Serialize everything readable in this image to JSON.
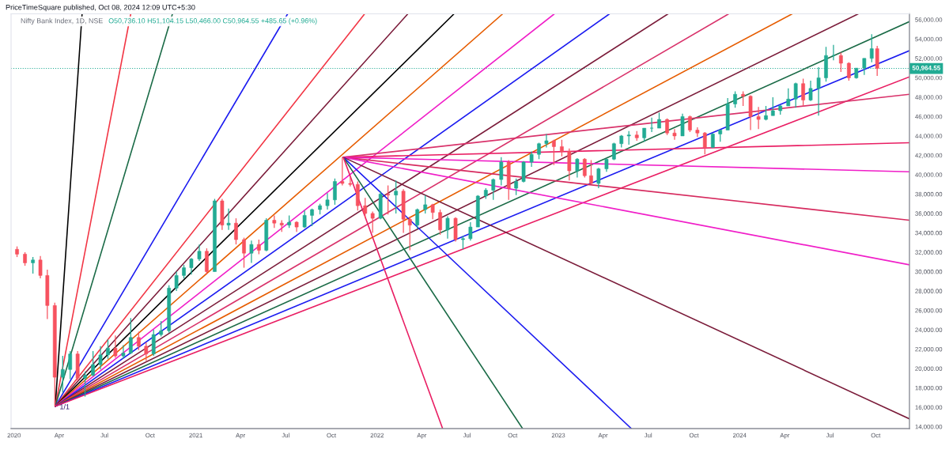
{
  "chart_data": {
    "type": "candlestick",
    "annotations": [
      "PriceTimeSquare published, Oct 08, 2024 12:09 UTC+5:30",
      "Nifty Bank Index, 1D, NSE",
      "O50,736.10 H51,104.15 L50,466.00 C50,964.55 +485.65 (+0.96%)",
      {
        "text": "1/1",
        "x": "2020-03-24",
        "y": 16100
      }
    ],
    "xlim": [
      "2019-12-26",
      "2024-12-08"
    ],
    "xticks": [
      {
        "value": "2020-01-01",
        "label": "2020"
      },
      {
        "value": "2020-04-01",
        "label": "Apr"
      },
      {
        "value": "2020-07-01",
        "label": "Jul"
      },
      {
        "value": "2020-10-01",
        "label": "Oct"
      },
      {
        "value": "2021-01-01",
        "label": "2021"
      },
      {
        "value": "2021-04-01",
        "label": "Apr"
      },
      {
        "value": "2021-07-01",
        "label": "Jul"
      },
      {
        "value": "2021-10-01",
        "label": "Oct"
      },
      {
        "value": "2022-01-01",
        "label": "2022"
      },
      {
        "value": "2022-04-01",
        "label": "Apr"
      },
      {
        "value": "2022-07-01",
        "label": "Jul"
      },
      {
        "value": "2022-10-01",
        "label": "Oct"
      },
      {
        "value": "2023-01-01",
        "label": "2023"
      },
      {
        "value": "2023-04-01",
        "label": "Apr"
      },
      {
        "value": "2023-07-01",
        "label": "Jul"
      },
      {
        "value": "2023-10-01",
        "label": "Oct"
      },
      {
        "value": "2024-01-01",
        "label": "2024"
      },
      {
        "value": "2024-04-01",
        "label": "Apr"
      },
      {
        "value": "2024-07-01",
        "label": "Jul"
      },
      {
        "value": "2024-10-01",
        "label": "Oct"
      }
    ],
    "ylim": [
      13800,
      56600
    ],
    "yticks": [
      {
        "value": 14000,
        "label": "14,000.00"
      },
      {
        "value": 16000,
        "label": "16,000.00"
      },
      {
        "value": 18000,
        "label": "18,000.00"
      },
      {
        "value": 20000,
        "label": "20,000.00"
      },
      {
        "value": 22000,
        "label": "22,000.00"
      },
      {
        "value": 24000,
        "label": "24,000.00"
      },
      {
        "value": 26000,
        "label": "26,000.00"
      },
      {
        "value": 28000,
        "label": "28,000.00"
      },
      {
        "value": 30000,
        "label": "30,000.00"
      },
      {
        "value": 32000,
        "label": "32,000.00"
      },
      {
        "value": 34000,
        "label": "34,000.00"
      },
      {
        "value": 36000,
        "label": "36,000.00"
      },
      {
        "value": 38000,
        "label": "38,000.00"
      },
      {
        "value": 40000,
        "label": "40,000.00"
      },
      {
        "value": 42000,
        "label": "42,000.00"
      },
      {
        "value": 44000,
        "label": "44,000.00"
      },
      {
        "value": 46000,
        "label": "46,000.00"
      },
      {
        "value": 48000,
        "label": "48,000.00"
      },
      {
        "value": 50000,
        "label": "50,000.00"
      },
      {
        "value": 52000,
        "label": "52,000.00"
      },
      {
        "value": 54000,
        "label": "54,000.00"
      },
      {
        "value": 56000,
        "label": "56,000.00"
      }
    ],
    "grid": false,
    "ref_lines": [
      {
        "axis": "y",
        "value": 50964.55,
        "label": "50,964.55",
        "color": "#22ab94",
        "line_style": "dotted"
      }
    ],
    "series": [
      {
        "x": [
          "2020-01-07",
          "2020-01-23",
          "2020-02-08",
          "2020-02-23",
          "2020-03-08",
          "2020-03-23",
          "2020-04-08",
          "2020-04-23",
          "2020-05-08",
          "2020-05-23",
          "2020-06-08",
          "2020-06-23",
          "2020-07-08",
          "2020-07-23",
          "2020-08-08",
          "2020-08-23",
          "2020-09-08",
          "2020-09-23",
          "2020-10-08",
          "2020-10-23",
          "2020-11-08",
          "2020-11-23",
          "2020-12-08",
          "2020-12-23",
          "2021-01-08",
          "2021-01-23",
          "2021-02-08",
          "2021-02-23",
          "2021-03-08",
          "2021-03-23",
          "2021-04-08",
          "2021-04-23",
          "2021-05-08",
          "2021-05-23",
          "2021-06-08",
          "2021-06-23",
          "2021-07-08",
          "2021-07-23",
          "2021-08-08",
          "2021-08-23",
          "2021-09-08",
          "2021-09-23",
          "2021-10-08",
          "2021-10-23",
          "2021-11-08",
          "2021-11-23",
          "2021-12-08",
          "2021-12-23",
          "2022-01-08",
          "2022-01-23",
          "2022-02-08",
          "2022-02-23",
          "2022-03-08",
          "2022-03-23",
          "2022-04-08",
          "2022-04-23",
          "2022-05-08",
          "2022-05-23",
          "2022-06-08",
          "2022-06-23",
          "2022-07-08",
          "2022-07-23",
          "2022-08-08",
          "2022-08-23",
          "2022-09-08",
          "2022-09-23",
          "2022-10-08",
          "2022-10-23",
          "2022-11-08",
          "2022-11-23",
          "2022-12-08",
          "2022-12-23",
          "2023-01-08",
          "2023-01-23",
          "2023-02-08",
          "2023-02-23",
          "2023-03-08",
          "2023-03-23",
          "2023-04-08",
          "2023-04-23",
          "2023-05-08",
          "2023-05-23",
          "2023-06-08",
          "2023-06-23",
          "2023-07-08",
          "2023-07-23",
          "2023-08-08",
          "2023-08-23",
          "2023-09-08",
          "2023-09-23",
          "2023-10-08",
          "2023-10-23",
          "2023-11-08",
          "2023-11-23",
          "2023-12-08",
          "2023-12-23",
          "2024-01-08",
          "2024-01-23",
          "2024-02-08",
          "2024-02-23",
          "2024-03-08",
          "2024-03-23",
          "2024-04-08",
          "2024-04-23",
          "2024-05-08",
          "2024-05-23",
          "2024-06-08",
          "2024-06-23",
          "2024-07-08",
          "2024-07-23",
          "2024-08-08",
          "2024-08-23",
          "2024-09-08",
          "2024-09-23",
          "2024-10-04"
        ],
        "ohlc": [
          [
            32300,
            32600,
            31500,
            31800
          ],
          [
            31800,
            32000,
            30600,
            30900
          ],
          [
            30900,
            31500,
            29800,
            31200
          ],
          [
            31200,
            31600,
            29300,
            29600
          ],
          [
            29600,
            30200,
            25100,
            26500
          ],
          [
            26500,
            26800,
            16100,
            19100
          ],
          [
            19100,
            21300,
            17500,
            19900
          ],
          [
            19900,
            21800,
            18900,
            21500
          ],
          [
            21500,
            21800,
            18700,
            19000
          ],
          [
            19000,
            19700,
            17100,
            19300
          ],
          [
            19300,
            21800,
            19200,
            20400
          ],
          [
            20400,
            22300,
            19900,
            21400
          ],
          [
            21400,
            23000,
            21000,
            22100
          ],
          [
            22100,
            23400,
            21100,
            21300
          ],
          [
            21300,
            22400,
            21000,
            21600
          ],
          [
            21600,
            25200,
            21500,
            23200
          ],
          [
            23200,
            23800,
            21900,
            22300
          ],
          [
            22300,
            22700,
            20800,
            21500
          ],
          [
            21500,
            24000,
            21300,
            23500
          ],
          [
            23500,
            24900,
            23300,
            23900
          ],
          [
            23900,
            28600,
            23700,
            28300
          ],
          [
            28300,
            30000,
            28000,
            29600
          ],
          [
            29600,
            30700,
            29300,
            30400
          ],
          [
            30400,
            31400,
            29700,
            31300
          ],
          [
            31300,
            32800,
            31100,
            32100
          ],
          [
            32100,
            32400,
            29700,
            30000
          ],
          [
            30000,
            37500,
            30000,
            37300
          ],
          [
            37300,
            37500,
            34300,
            34800
          ],
          [
            34800,
            36500,
            34300,
            35000
          ],
          [
            35000,
            35500,
            32800,
            33300
          ],
          [
            33300,
            33500,
            30400,
            31900
          ],
          [
            31900,
            33200,
            30900,
            32800
          ],
          [
            32800,
            33300,
            31800,
            32200
          ],
          [
            32200,
            35500,
            32100,
            35300
          ],
          [
            35300,
            35800,
            34500,
            35000
          ],
          [
            35000,
            35300,
            34100,
            34800
          ],
          [
            34800,
            35800,
            34500,
            35100
          ],
          [
            35100,
            35200,
            34100,
            34600
          ],
          [
            34600,
            36300,
            34500,
            35800
          ],
          [
            35800,
            36500,
            34700,
            36400
          ],
          [
            36400,
            37000,
            35900,
            36800
          ],
          [
            36800,
            38100,
            36400,
            37400
          ],
          [
            37400,
            39600,
            36900,
            39300
          ],
          [
            39300,
            41800,
            38900,
            39100
          ],
          [
            39100,
            39800,
            38800,
            39000
          ],
          [
            39000,
            39300,
            36300,
            36800
          ],
          [
            36800,
            37600,
            35500,
            36000
          ],
          [
            36000,
            36200,
            34000,
            35500
          ],
          [
            35500,
            38300,
            35400,
            38000
          ],
          [
            38000,
            38900,
            35900,
            37900
          ],
          [
            37900,
            39400,
            36000,
            38300
          ],
          [
            38300,
            38500,
            34000,
            35400
          ],
          [
            35400,
            35600,
            32200,
            34800
          ],
          [
            34800,
            36500,
            34400,
            36400
          ],
          [
            36400,
            37900,
            36000,
            36900
          ],
          [
            36900,
            37000,
            35400,
            36100
          ],
          [
            36100,
            36400,
            33800,
            34300
          ],
          [
            34300,
            35700,
            33400,
            35500
          ],
          [
            35500,
            35600,
            33100,
            33300
          ],
          [
            33300,
            33700,
            32300,
            33400
          ],
          [
            33400,
            35100,
            33200,
            34600
          ],
          [
            34600,
            37900,
            34600,
            37800
          ],
          [
            37800,
            38600,
            37500,
            38400
          ],
          [
            38400,
            39600,
            37400,
            39500
          ],
          [
            39500,
            41800,
            38900,
            41300
          ],
          [
            41300,
            41500,
            37400,
            38600
          ],
          [
            38600,
            39600,
            37900,
            39300
          ],
          [
            39300,
            41400,
            39200,
            41300
          ],
          [
            41300,
            42400,
            40800,
            42100
          ],
          [
            42100,
            43300,
            41600,
            43200
          ],
          [
            43200,
            44200,
            42800,
            43500
          ],
          [
            43500,
            43600,
            41000,
            42900
          ],
          [
            42900,
            43600,
            41900,
            42400
          ],
          [
            42400,
            42700,
            39400,
            40400
          ],
          [
            40400,
            41700,
            39700,
            41600
          ],
          [
            41600,
            41700,
            39700,
            39900
          ],
          [
            39900,
            41500,
            39000,
            39100
          ],
          [
            39100,
            40700,
            38600,
            40600
          ],
          [
            40600,
            41600,
            40300,
            41600
          ],
          [
            41600,
            43300,
            41500,
            43200
          ],
          [
            43200,
            44100,
            42800,
            44000
          ],
          [
            44000,
            44500,
            43100,
            44100
          ],
          [
            44100,
            44500,
            43500,
            43800
          ],
          [
            43800,
            44800,
            43400,
            44800
          ],
          [
            44800,
            45900,
            44400,
            44800
          ],
          [
            44800,
            46400,
            44800,
            45700
          ],
          [
            45700,
            45800,
            44100,
            44300
          ],
          [
            44300,
            44700,
            43600,
            44000
          ],
          [
            44000,
            46300,
            44000,
            46000
          ],
          [
            46000,
            46100,
            44400,
            44600
          ],
          [
            44600,
            44900,
            43900,
            44300
          ],
          [
            44300,
            44400,
            42100,
            42800
          ],
          [
            42800,
            44300,
            42800,
            44200
          ],
          [
            44200,
            44600,
            43400,
            44600
          ],
          [
            44600,
            47900,
            44600,
            47300
          ],
          [
            47300,
            48600,
            46900,
            48300
          ],
          [
            48300,
            48600,
            47100,
            48100
          ],
          [
            48100,
            48200,
            44600,
            46000
          ],
          [
            46000,
            47000,
            44700,
            45700
          ],
          [
            45700,
            47100,
            45600,
            46100
          ],
          [
            46100,
            48000,
            46100,
            46600
          ],
          [
            46600,
            47200,
            46200,
            47100
          ],
          [
            47100,
            48900,
            47100,
            47800
          ],
          [
            47800,
            49500,
            46900,
            49400
          ],
          [
            49400,
            49900,
            47100,
            47700
          ],
          [
            47700,
            49700,
            47600,
            48900
          ],
          [
            48900,
            51100,
            46100,
            50000
          ],
          [
            50000,
            53200,
            49600,
            52300
          ],
          [
            52300,
            53400,
            51800,
            52300
          ],
          [
            52300,
            52600,
            50600,
            51500
          ],
          [
            51500,
            51600,
            49700,
            50000
          ],
          [
            50000,
            51000,
            49900,
            51000
          ],
          [
            51000,
            52000,
            50300,
            52000
          ],
          [
            52000,
            54500,
            51600,
            53000
          ],
          [
            53000,
            53300,
            50200,
            50964.55
          ]
        ],
        "colors": [
          "#f7525f",
          "#f7525f",
          "#22ab94",
          "#f7525f",
          "#f7525f",
          "#f7525f",
          "#22ab94",
          "#22ab94",
          "#f7525f",
          "#22ab94",
          "#22ab94",
          "#22ab94",
          "#22ab94",
          "#f7525f",
          "#22ab94",
          "#22ab94",
          "#f7525f",
          "#f7525f",
          "#22ab94",
          "#22ab94",
          "#22ab94",
          "#22ab94",
          "#22ab94",
          "#22ab94",
          "#22ab94",
          "#f7525f",
          "#22ab94",
          "#f7525f",
          "#22ab94",
          "#f7525f",
          "#f7525f",
          "#22ab94",
          "#f7525f",
          "#22ab94",
          "#f7525f",
          "#f7525f",
          "#22ab94",
          "#f7525f",
          "#22ab94",
          "#22ab94",
          "#22ab94",
          "#22ab94",
          "#22ab94",
          "#f7525f",
          "#f7525f",
          "#f7525f",
          "#f7525f",
          "#f7525f",
          "#22ab94",
          "#f7525f",
          "#22ab94",
          "#f7525f",
          "#f7525f",
          "#22ab94",
          "#22ab94",
          "#f7525f",
          "#f7525f",
          "#22ab94",
          "#f7525f",
          "#22ab94",
          "#22ab94",
          "#22ab94",
          "#22ab94",
          "#22ab94",
          "#22ab94",
          "#f7525f",
          "#22ab94",
          "#22ab94",
          "#22ab94",
          "#22ab94",
          "#22ab94",
          "#f7525f",
          "#f7525f",
          "#f7525f",
          "#22ab94",
          "#f7525f",
          "#f7525f",
          "#22ab94",
          "#22ab94",
          "#22ab94",
          "#22ab94",
          "#22ab94",
          "#f7525f",
          "#22ab94",
          "#22ab94",
          "#22ab94",
          "#f7525f",
          "#f7525f",
          "#22ab94",
          "#f7525f",
          "#f7525f",
          "#f7525f",
          "#22ab94",
          "#22ab94",
          "#22ab94",
          "#22ab94",
          "#f7525f",
          "#f7525f",
          "#f7525f",
          "#22ab94",
          "#22ab94",
          "#22ab94",
          "#22ab94",
          "#22ab94",
          "#f7525f",
          "#22ab94",
          "#22ab94",
          "#22ab94",
          "#22ab94",
          "#f7525f",
          "#f7525f",
          "#22ab94",
          "#22ab94",
          "#22ab94",
          "#f7525f"
        ]
      },
      {
        "type": "line",
        "x": [
          "2020-03-24",
          "2020-05-17"
        ],
        "values": [
          16100,
          56600
        ],
        "color": "#000000"
      },
      {
        "type": "line",
        "x": [
          "2020-03-24",
          "2020-08-23"
        ],
        "values": [
          16100,
          56600
        ],
        "color": "#f23645"
      },
      {
        "type": "line",
        "x": [
          "2020-03-24",
          "2020-11-15"
        ],
        "values": [
          16100,
          56600
        ],
        "color": "#1b6b47"
      },
      {
        "type": "line",
        "x": [
          "2020-03-24",
          "2021-07-05"
        ],
        "values": [
          16100,
          56600
        ],
        "color": "#1c1cf0"
      },
      {
        "type": "line",
        "x": [
          "2020-03-24",
          "2021-12-07"
        ],
        "values": [
          16100,
          56600
        ],
        "color": "#f23645"
      },
      {
        "type": "line",
        "x": [
          "2020-03-24",
          "2022-03-04"
        ],
        "values": [
          16100,
          56600
        ],
        "color": "#7b1c3a"
      },
      {
        "type": "line",
        "x": [
          "2020-03-24",
          "2022-06-05"
        ],
        "values": [
          16100,
          56600
        ],
        "color": "#000000"
      },
      {
        "type": "line",
        "x": [
          "2020-03-24",
          "2022-09-11"
        ],
        "values": [
          16100,
          56600
        ],
        "color": "#e65c00"
      },
      {
        "type": "line",
        "x": [
          "2020-03-24",
          "2022-12-24"
        ],
        "values": [
          16100,
          56600
        ],
        "color": "#f01ec8"
      },
      {
        "type": "line",
        "x": [
          "2020-03-24",
          "2023-04-14"
        ],
        "values": [
          16100,
          56600
        ],
        "color": "#1c1cf0"
      },
      {
        "type": "line",
        "x": [
          "2020-03-24",
          "2023-08-10"
        ],
        "values": [
          16100,
          56600
        ],
        "color": "#7b1c3a"
      },
      {
        "type": "line",
        "x": [
          "2020-03-24",
          "2023-12-10"
        ],
        "values": [
          16100,
          56600
        ],
        "color": "#d9336b"
      },
      {
        "type": "line",
        "x": [
          "2020-03-24",
          "2024-04-16"
        ],
        "values": [
          16100,
          56600
        ],
        "color": "#e65c00"
      },
      {
        "type": "line",
        "x": [
          "2020-03-24",
          "2024-08-27"
        ],
        "values": [
          16100,
          56600
        ],
        "color": "#7b1c3a"
      },
      {
        "type": "line",
        "x": [
          "2020-03-24",
          "2024-12-08"
        ],
        "values": [
          16100,
          55800
        ],
        "color": "#1b6b47"
      },
      {
        "type": "line",
        "x": [
          "2020-03-24",
          "2024-12-08"
        ],
        "values": [
          16100,
          52800
        ],
        "color": "#1c1cf0"
      },
      {
        "type": "line",
        "x": [
          "2020-03-24",
          "2024-12-08"
        ],
        "values": [
          16100,
          50100
        ],
        "color": "#e91e63"
      },
      {
        "type": "line",
        "x": [
          "2021-10-25",
          "2024-12-08"
        ],
        "values": [
          41800,
          48300
        ],
        "color": "#d9336b"
      },
      {
        "type": "line",
        "x": [
          "2021-10-25",
          "2024-12-08"
        ],
        "values": [
          41800,
          43300
        ],
        "color": "#e91e63"
      },
      {
        "type": "line",
        "x": [
          "2021-10-25",
          "2024-12-08"
        ],
        "values": [
          41800,
          40300
        ],
        "color": "#f01ec8"
      },
      {
        "type": "line",
        "x": [
          "2021-10-25",
          "2024-12-08"
        ],
        "values": [
          41800,
          35300
        ],
        "color": "#d62a5e"
      },
      {
        "type": "line",
        "x": [
          "2021-10-25",
          "2024-12-08"
        ],
        "values": [
          41800,
          30700
        ],
        "color": "#f01ec8"
      },
      {
        "type": "line",
        "x": [
          "2021-10-25",
          "2024-12-08"
        ],
        "values": [
          41800,
          14800
        ],
        "color": "#7b1c3a"
      },
      {
        "type": "line",
        "x": [
          "2021-10-25",
          "2023-05-28"
        ],
        "values": [
          41800,
          13800
        ],
        "color": "#1c1cf0"
      },
      {
        "type": "line",
        "x": [
          "2021-10-25",
          "2022-10-21"
        ],
        "values": [
          41800,
          13800
        ],
        "color": "#1b6b47"
      },
      {
        "type": "line",
        "x": [
          "2021-10-25",
          "2022-05-13"
        ],
        "values": [
          41800,
          13800
        ],
        "color": "#e91e63"
      }
    ]
  }
}
